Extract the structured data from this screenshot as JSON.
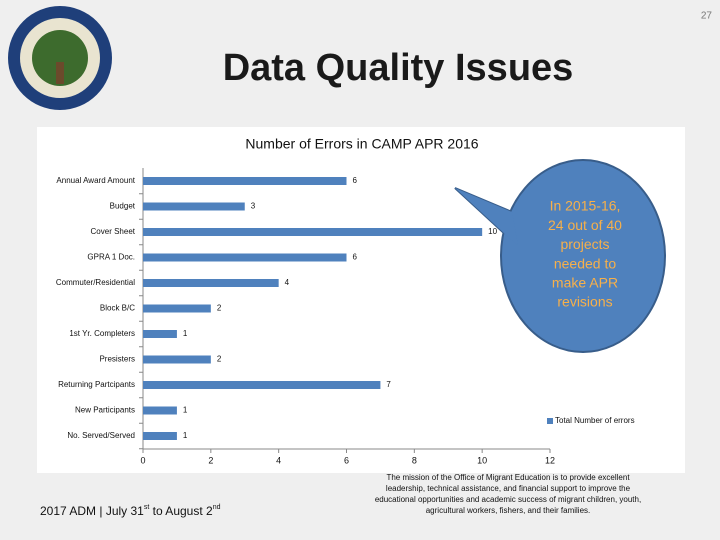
{
  "page_number": "27",
  "title": "Data Quality Issues",
  "chart_data": {
    "type": "bar",
    "orientation": "horizontal",
    "title": "Number of Errors in CAMP APR 2016",
    "categories": [
      "Annual Award Amount",
      "Budget",
      "Cover Sheet",
      "GPRA 1 Doc.",
      "Commuter/Residential",
      "Block B/C",
      "1st Yr. Completers",
      "Presisters",
      "Returning Partcipants",
      "New Participants",
      "No. Served/Served"
    ],
    "series": [
      {
        "name": "Total Number of errors",
        "color": "#4f81bd",
        "values": [
          6,
          3,
          10,
          6,
          4,
          2,
          1,
          2,
          7,
          1,
          1
        ]
      }
    ],
    "xlim": [
      0,
      12
    ],
    "xticks": [
      0,
      2,
      4,
      6,
      8,
      10,
      12
    ],
    "grid": false,
    "legend": "right",
    "data_labels": true
  },
  "callout": [
    "In 2015-16,",
    "24 out of 40",
    "projects",
    "needed to",
    "make APR",
    "revisions"
  ],
  "footer": {
    "left": [
      "2017 ADM | July 31",
      "st",
      " to August 2",
      "nd"
    ],
    "mission": [
      "The mission of the Office of Migrant Education is to provide excellent",
      "leadership, technical assistance, and financial support to improve the",
      "educational opportunities and academic success of migrant children, youth,",
      "agricultural workers, fishers, and their families."
    ]
  }
}
